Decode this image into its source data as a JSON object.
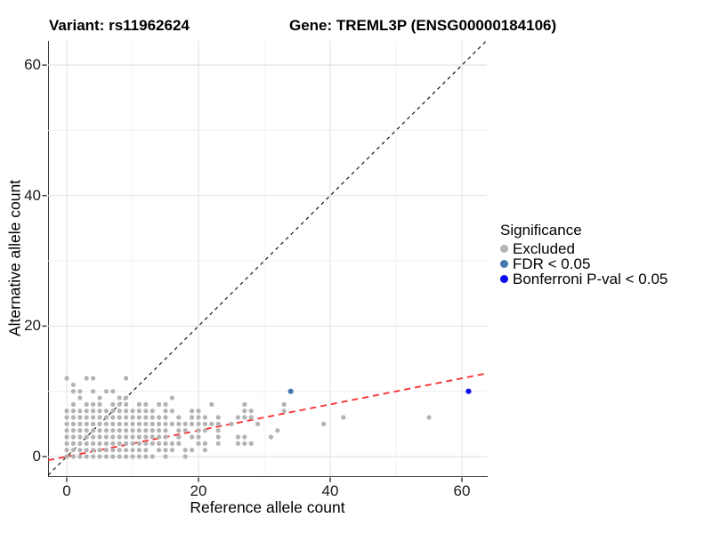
{
  "header": {
    "variant_title": "Variant: rs11962624",
    "gene_title": "Gene: TREML3P (ENSG00000184106)"
  },
  "chart_data": {
    "type": "scatter",
    "xlabel": "Reference allele count",
    "ylabel": "Alternative allele count",
    "xlim": [
      -2.84,
      63.78
    ],
    "ylim": [
      -3.0,
      63.7
    ],
    "x_ticks": [
      0,
      20,
      40,
      60
    ],
    "y_ticks": [
      0,
      20,
      40,
      60
    ],
    "x_minor_gridlines": [
      10,
      30,
      50
    ],
    "y_minor_gridlines": [
      10,
      30,
      50
    ],
    "grid": true,
    "background": "#ffffff",
    "major_grid_color": "#e4e4e4",
    "minor_grid_color": "#f0f0f0",
    "axis_line_color": "#3c3c3c",
    "legend": {
      "title": "Significance",
      "position": "right"
    },
    "series": [
      {
        "name": "Excluded",
        "color": "#b3b3b3",
        "point_radius": 2.6,
        "points": [
          [
            0,
            0
          ],
          [
            1,
            0
          ],
          [
            2,
            0
          ],
          [
            3,
            0
          ],
          [
            4,
            0
          ],
          [
            5,
            0
          ],
          [
            6,
            0
          ],
          [
            7,
            0
          ],
          [
            8,
            0
          ],
          [
            9,
            0
          ],
          [
            10,
            0
          ],
          [
            11,
            0
          ],
          [
            12,
            0
          ],
          [
            13,
            0
          ],
          [
            15,
            0
          ],
          [
            18,
            0
          ],
          [
            0,
            1
          ],
          [
            1,
            1
          ],
          [
            2,
            1
          ],
          [
            3,
            1
          ],
          [
            4,
            1
          ],
          [
            5,
            1
          ],
          [
            6,
            1
          ],
          [
            7,
            1
          ],
          [
            8,
            1
          ],
          [
            9,
            1
          ],
          [
            10,
            1
          ],
          [
            11,
            1
          ],
          [
            12,
            1
          ],
          [
            14,
            1
          ],
          [
            15,
            1
          ],
          [
            16,
            1
          ],
          [
            18,
            1
          ],
          [
            19,
            1
          ],
          [
            21,
            1
          ],
          [
            0,
            2
          ],
          [
            1,
            2
          ],
          [
            2,
            2
          ],
          [
            3,
            2
          ],
          [
            4,
            2
          ],
          [
            5,
            2
          ],
          [
            6,
            2
          ],
          [
            7,
            2
          ],
          [
            8,
            2
          ],
          [
            9,
            2
          ],
          [
            10,
            2
          ],
          [
            11,
            2
          ],
          [
            12,
            2
          ],
          [
            13,
            2
          ],
          [
            14,
            2
          ],
          [
            15,
            2
          ],
          [
            16,
            2
          ],
          [
            17,
            2
          ],
          [
            20,
            2
          ],
          [
            21,
            2
          ],
          [
            23,
            2
          ],
          [
            26,
            2
          ],
          [
            27,
            2
          ],
          [
            28,
            2
          ],
          [
            0,
            3
          ],
          [
            1,
            3
          ],
          [
            2,
            3
          ],
          [
            3,
            3
          ],
          [
            4,
            3
          ],
          [
            5,
            3
          ],
          [
            6,
            3
          ],
          [
            7,
            3
          ],
          [
            8,
            3
          ],
          [
            9,
            3
          ],
          [
            10,
            3
          ],
          [
            11,
            3
          ],
          [
            12,
            3
          ],
          [
            13,
            3
          ],
          [
            14,
            3
          ],
          [
            15,
            3
          ],
          [
            17,
            3
          ],
          [
            19,
            3
          ],
          [
            20,
            3
          ],
          [
            23,
            3
          ],
          [
            26,
            3
          ],
          [
            27,
            3
          ],
          [
            31,
            3
          ],
          [
            0,
            4
          ],
          [
            1,
            4
          ],
          [
            2,
            4
          ],
          [
            3,
            4
          ],
          [
            4,
            4
          ],
          [
            5,
            4
          ],
          [
            6,
            4
          ],
          [
            7,
            4
          ],
          [
            8,
            4
          ],
          [
            9,
            4
          ],
          [
            10,
            4
          ],
          [
            11,
            4
          ],
          [
            12,
            4
          ],
          [
            13,
            4
          ],
          [
            14,
            4
          ],
          [
            15,
            4
          ],
          [
            17,
            4
          ],
          [
            18,
            4
          ],
          [
            20,
            4
          ],
          [
            21,
            4
          ],
          [
            23,
            4
          ],
          [
            32,
            4
          ],
          [
            0,
            5
          ],
          [
            1,
            5
          ],
          [
            2,
            5
          ],
          [
            3,
            5
          ],
          [
            4,
            5
          ],
          [
            5,
            5
          ],
          [
            6,
            5
          ],
          [
            7,
            5
          ],
          [
            8,
            5
          ],
          [
            9,
            5
          ],
          [
            10,
            5
          ],
          [
            11,
            5
          ],
          [
            12,
            5
          ],
          [
            13,
            5
          ],
          [
            14,
            5
          ],
          [
            15,
            5
          ],
          [
            16,
            5
          ],
          [
            17,
            5
          ],
          [
            18,
            5
          ],
          [
            19,
            5
          ],
          [
            20,
            5
          ],
          [
            21,
            5
          ],
          [
            22,
            5
          ],
          [
            23,
            5
          ],
          [
            25,
            5
          ],
          [
            29,
            5
          ],
          [
            39,
            5
          ],
          [
            0,
            6
          ],
          [
            1,
            6
          ],
          [
            2,
            6
          ],
          [
            3,
            6
          ],
          [
            4,
            6
          ],
          [
            5,
            6
          ],
          [
            6,
            6
          ],
          [
            7,
            6
          ],
          [
            8,
            6
          ],
          [
            9,
            6
          ],
          [
            10,
            6
          ],
          [
            11,
            6
          ],
          [
            12,
            6
          ],
          [
            13,
            6
          ],
          [
            14,
            6
          ],
          [
            15,
            6
          ],
          [
            17,
            6
          ],
          [
            19,
            6
          ],
          [
            20,
            6
          ],
          [
            21,
            6
          ],
          [
            23,
            6
          ],
          [
            26,
            6
          ],
          [
            27,
            6
          ],
          [
            28,
            6
          ],
          [
            42,
            6
          ],
          [
            55,
            6
          ],
          [
            0,
            7
          ],
          [
            1,
            7
          ],
          [
            2,
            7
          ],
          [
            3,
            7
          ],
          [
            4,
            7
          ],
          [
            5,
            7
          ],
          [
            6,
            7
          ],
          [
            7,
            7
          ],
          [
            8,
            7
          ],
          [
            9,
            7
          ],
          [
            10,
            7
          ],
          [
            11,
            7
          ],
          [
            12,
            7
          ],
          [
            13,
            7
          ],
          [
            15,
            7
          ],
          [
            16,
            7
          ],
          [
            19,
            7
          ],
          [
            20,
            7
          ],
          [
            27,
            7
          ],
          [
            28,
            7
          ],
          [
            33,
            7
          ],
          [
            1,
            8
          ],
          [
            3,
            8
          ],
          [
            4,
            8
          ],
          [
            5,
            8
          ],
          [
            7,
            8
          ],
          [
            8,
            8
          ],
          [
            9,
            8
          ],
          [
            11,
            8
          ],
          [
            12,
            8
          ],
          [
            14,
            8
          ],
          [
            15,
            8
          ],
          [
            22,
            8
          ],
          [
            27,
            8
          ],
          [
            33,
            8
          ],
          [
            2,
            9
          ],
          [
            5,
            9
          ],
          [
            8,
            9
          ],
          [
            9,
            9
          ],
          [
            16,
            9
          ],
          [
            1,
            10
          ],
          [
            2,
            10
          ],
          [
            4,
            10
          ],
          [
            6,
            10
          ],
          [
            7,
            10
          ],
          [
            1,
            11
          ],
          [
            0,
            12
          ],
          [
            3,
            12
          ],
          [
            4,
            12
          ],
          [
            9,
            12
          ]
        ]
      },
      {
        "name": "FDR < 0.05",
        "color": "#4577b0",
        "point_radius": 3.1,
        "points": [
          [
            34,
            10
          ]
        ]
      },
      {
        "name": "Bonferroni P-val < 0.05",
        "color": "#0b0bf0",
        "point_radius": 3.1,
        "points": [
          [
            61,
            10
          ]
        ]
      }
    ],
    "lines": [
      {
        "name": "identity-line",
        "style": "dashed",
        "color": "#141414",
        "width": 1.2,
        "dash": "4 4",
        "slope": 1,
        "intercept": 0
      },
      {
        "name": "regression-line",
        "style": "dashed",
        "color": "#fb2b2b",
        "width": 1.8,
        "dash": "7 5",
        "slope": 0.2,
        "intercept": 0
      }
    ]
  }
}
